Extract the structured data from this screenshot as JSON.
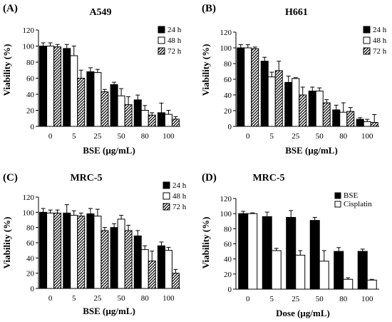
{
  "figure": {
    "background": "#ffffff"
  },
  "chart_data": [
    {
      "type": "bar",
      "panel": "(A)",
      "title": "A549",
      "xlabel": "BSE (µg/mL)",
      "ylabel": "Viability (%)",
      "ylim": [
        0,
        120
      ],
      "yticks": [
        0,
        20,
        40,
        60,
        80,
        100,
        120
      ],
      "categories": [
        "0",
        "5",
        "25",
        "50",
        "80",
        "100"
      ],
      "series": [
        {
          "name": "24 h",
          "pattern": "solid",
          "values": [
            100,
            97,
            68,
            52,
            33,
            17
          ],
          "errors": [
            4,
            5,
            5,
            3,
            6,
            12
          ]
        },
        {
          "name": "48 h",
          "pattern": "open",
          "values": [
            100,
            88,
            67,
            38,
            20,
            15
          ],
          "errors": [
            4,
            12,
            4,
            9,
            6,
            5
          ]
        },
        {
          "name": "72 h",
          "pattern": "hatched",
          "values": [
            99,
            60,
            43,
            27,
            14,
            9
          ],
          "errors": [
            3,
            10,
            3,
            10,
            3,
            3
          ]
        }
      ],
      "legend_position": "top-right"
    },
    {
      "type": "bar",
      "panel": "(B)",
      "title": "H661",
      "xlabel": "BSE (µg/mL)",
      "ylabel": "Viability (%)",
      "ylim": [
        0,
        120
      ],
      "yticks": [
        0,
        20,
        40,
        60,
        80,
        100,
        120
      ],
      "categories": [
        "0",
        "5",
        "25",
        "50",
        "80",
        "100"
      ],
      "series": [
        {
          "name": "24 h",
          "pattern": "solid",
          "values": [
            100,
            83,
            56,
            45,
            21,
            9
          ],
          "errors": [
            4,
            5,
            8,
            5,
            6,
            2
          ]
        },
        {
          "name": "48 h",
          "pattern": "open",
          "values": [
            100,
            63,
            61,
            45,
            18,
            6
          ],
          "errors": [
            4,
            6,
            1,
            4,
            12,
            3
          ]
        },
        {
          "name": "72 h",
          "pattern": "hatched",
          "values": [
            99,
            71,
            40,
            30,
            19,
            5
          ],
          "errors": [
            2,
            12,
            10,
            4,
            5,
            10
          ]
        }
      ],
      "legend_position": "top-right"
    },
    {
      "type": "bar",
      "panel": "(C)",
      "title": "MRC-5",
      "xlabel": "BSE (µg/mL)",
      "ylabel": "Viability (%)",
      "ylim": [
        0,
        120
      ],
      "yticks": [
        0,
        20,
        40,
        60,
        80,
        100,
        120
      ],
      "categories": [
        "0",
        "5",
        "25",
        "50",
        "80",
        "100"
      ],
      "series": [
        {
          "name": "24 h",
          "pattern": "solid",
          "values": [
            100,
            99,
            98,
            80,
            69,
            56
          ],
          "errors": [
            5,
            11,
            7,
            5,
            7,
            5
          ]
        },
        {
          "name": "48 h",
          "pattern": "open",
          "values": [
            99,
            96,
            95,
            91,
            51,
            50
          ],
          "errors": [
            4,
            6,
            9,
            5,
            5,
            4
          ]
        },
        {
          "name": "72 h",
          "pattern": "hatched",
          "values": [
            99,
            95,
            76,
            76,
            36,
            20
          ],
          "errors": [
            4,
            4,
            4,
            7,
            13,
            5
          ]
        }
      ],
      "legend_position": "top-right"
    },
    {
      "type": "bar",
      "panel": "(D)",
      "title": "MRC-5",
      "xlabel": "Dose (µg/mL)",
      "ylabel": "Viability (%)",
      "ylim": [
        0,
        120
      ],
      "yticks": [
        0,
        20,
        40,
        60,
        80,
        100,
        120
      ],
      "categories": [
        "0",
        "5",
        "25",
        "50",
        "80",
        "100"
      ],
      "series": [
        {
          "name": "BSE",
          "pattern": "solid",
          "values": [
            100,
            96,
            95,
            91,
            50,
            50
          ],
          "errors": [
            3,
            6,
            9,
            4,
            5,
            3
          ]
        },
        {
          "name": "Cisplatin",
          "pattern": "open",
          "values": [
            100,
            51,
            45,
            37,
            13,
            12
          ],
          "errors": [
            1,
            3,
            6,
            14,
            2,
            1
          ]
        }
      ],
      "legend_position": "top-right"
    }
  ]
}
